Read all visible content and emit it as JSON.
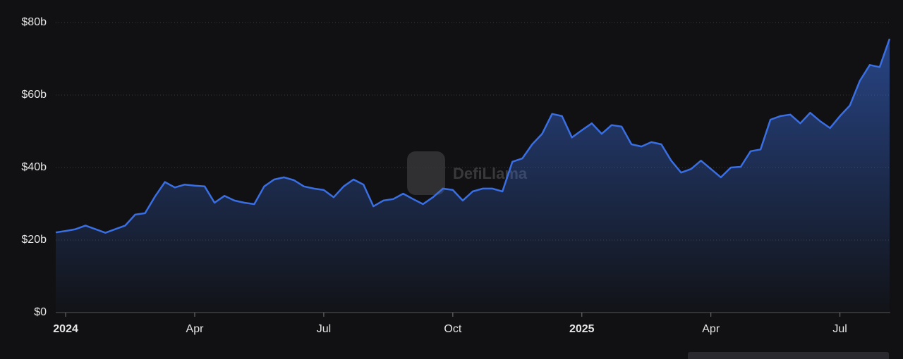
{
  "chart_data": {
    "type": "area",
    "watermark": "DefiLlama",
    "categories": [
      null,
      "2024",
      null,
      null,
      null,
      null,
      null,
      null,
      null,
      null,
      null,
      null,
      null,
      null,
      "Apr",
      null,
      null,
      null,
      null,
      null,
      null,
      null,
      null,
      null,
      null,
      null,
      null,
      "Jul",
      null,
      null,
      null,
      null,
      null,
      null,
      null,
      null,
      null,
      null,
      null,
      null,
      "Oct",
      null,
      null,
      null,
      null,
      null,
      null,
      null,
      null,
      null,
      null,
      null,
      null,
      "2025",
      null,
      null,
      null,
      null,
      null,
      null,
      null,
      null,
      null,
      null,
      null,
      null,
      "Apr",
      null,
      null,
      null,
      null,
      null,
      null,
      null,
      null,
      null,
      null,
      null,
      null,
      "Jul",
      null,
      null,
      null,
      null,
      null
    ],
    "values": [
      22.1,
      22.5,
      23,
      24,
      23,
      22,
      23,
      24,
      27,
      27.4,
      32,
      36,
      34.5,
      35.3,
      35,
      34.8,
      30.3,
      32.2,
      30.9,
      30.3,
      29.9,
      34.8,
      36.7,
      37.3,
      36.5,
      34.8,
      34.2,
      33.8,
      31.8,
      34.8,
      36.7,
      35.3,
      29.3,
      30.9,
      31.3,
      32.8,
      31.3,
      29.9,
      31.8,
      34.2,
      33.8,
      30.9,
      33.4,
      34.2,
      34.2,
      33.4,
      41.6,
      42.5,
      46.4,
      49.3,
      54.8,
      54.2,
      48.3,
      50.3,
      52.2,
      49.3,
      51.7,
      51.3,
      46.4,
      45.8,
      47,
      46.4,
      41.9,
      38.6,
      39.6,
      41.9,
      39.6,
      37.3,
      40,
      40.2,
      44.5,
      45,
      53.2,
      54.2,
      54.6,
      52.2,
      55.1,
      52.8,
      50.9,
      54.2,
      57.1,
      63.9,
      68.3,
      67.7,
      75.5
    ],
    "color": "#3a6fe3",
    "ylim": [
      0,
      80
    ],
    "yticks": [
      {
        "value": 0,
        "label": "$0"
      },
      {
        "value": 20,
        "label": "$20b"
      },
      {
        "value": 40,
        "label": "$40b"
      },
      {
        "value": 60,
        "label": "$60b"
      },
      {
        "value": 80,
        "label": "$80b"
      }
    ],
    "grid": true
  }
}
